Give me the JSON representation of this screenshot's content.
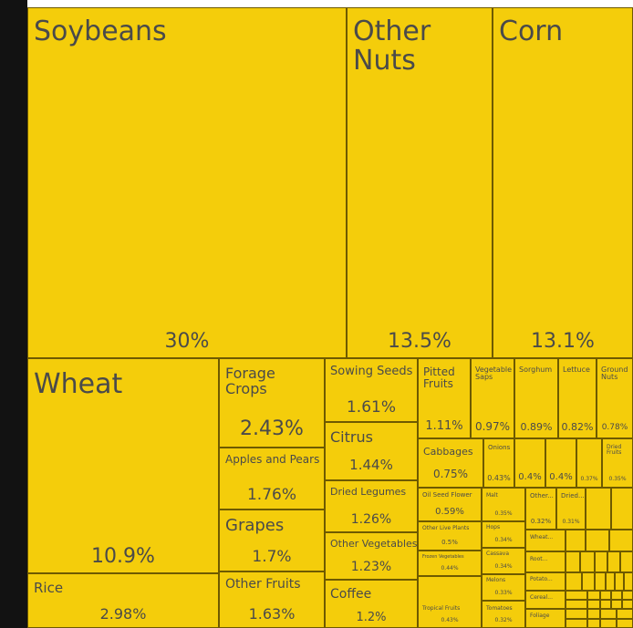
{
  "chart_data": {
    "type": "treemap",
    "colors": {
      "tile": "#f4cd0b",
      "border": "#6e5a00",
      "text": "#4a4a4a",
      "strip": "#121212",
      "background": "#ffffff"
    },
    "items": [
      {
        "name": "Soybeans",
        "display": "Soybeans",
        "value": 30,
        "label": "30%"
      },
      {
        "name": "Other Nuts",
        "display": "Other\nNuts",
        "value": 13.5,
        "label": "13.5%"
      },
      {
        "name": "Corn",
        "display": "Corn",
        "value": 13.1,
        "label": "13.1%"
      },
      {
        "name": "Wheat",
        "display": "Wheat",
        "value": 10.9,
        "label": "10.9%"
      },
      {
        "name": "Rice",
        "display": "Rice",
        "value": 2.98,
        "label": "2.98%"
      },
      {
        "name": "Forage Crops",
        "display": "Forage\nCrops",
        "value": 2.43,
        "label": "2.43%"
      },
      {
        "name": "Apples and Pears",
        "display": "Apples and Pears",
        "value": 1.76,
        "label": "1.76%"
      },
      {
        "name": "Grapes",
        "display": "Grapes",
        "value": 1.7,
        "label": "1.7%"
      },
      {
        "name": "Other Fruits",
        "display": "Other Fruits",
        "value": 1.63,
        "label": "1.63%"
      },
      {
        "name": "Sowing Seeds",
        "display": "Sowing Seeds",
        "value": 1.61,
        "label": "1.61%"
      },
      {
        "name": "Citrus",
        "display": "Citrus",
        "value": 1.44,
        "label": "1.44%"
      },
      {
        "name": "Dried Legumes",
        "display": "Dried Legumes",
        "value": 1.26,
        "label": "1.26%"
      },
      {
        "name": "Other Vegetables",
        "display": "Other Vegetables",
        "value": 1.23,
        "label": "1.23%"
      },
      {
        "name": "Coffee",
        "display": "Coffee",
        "value": 1.2,
        "label": "1.2%"
      },
      {
        "name": "Pitted Fruits",
        "display": "Pitted\nFruits",
        "value": 1.11,
        "label": "1.11%"
      },
      {
        "name": "Vegetable Saps",
        "display": "Vegetable\nSaps",
        "value": 0.97,
        "label": "0.97%"
      },
      {
        "name": "Sorghum",
        "display": "Sorghum",
        "value": 0.89,
        "label": "0.89%"
      },
      {
        "name": "Lettuce",
        "display": "Lettuce",
        "value": 0.82,
        "label": "0.82%"
      },
      {
        "name": "Ground Nuts",
        "display": "Ground\nNuts",
        "value": 0.78,
        "label": "0.78%"
      },
      {
        "name": "Cabbages",
        "display": "Cabbages",
        "value": 0.75,
        "label": "0.75%"
      },
      {
        "name": "Onions",
        "display": "Onions",
        "value": 0.43,
        "label": "0.43%"
      },
      {
        "name": "Unlabeled A",
        "display": "",
        "value": 0.4,
        "label": "0.4%"
      },
      {
        "name": "Unlabeled B",
        "display": "",
        "value": 0.4,
        "label": "0.4%"
      },
      {
        "name": "Unlabeled C",
        "display": "",
        "value": 0.37,
        "label": "0.37%"
      },
      {
        "name": "Dried Fruits",
        "display": "Dried\nFruits",
        "value": 0.35,
        "label": "0.35%"
      },
      {
        "name": "Oil Seed Flower",
        "display": "Oil Seed Flower",
        "value": 0.59,
        "label": "0.59%"
      },
      {
        "name": "Other Live Plants",
        "display": "Other Live Plants",
        "value": 0.5,
        "label": "0.5%"
      },
      {
        "name": "Frozen Vegetables",
        "display": "Frozen Vegetables",
        "value": 0.44,
        "label": "0.44%"
      },
      {
        "name": "Tropical Fruits",
        "display": "Tropical Fruits",
        "value": 0.43,
        "label": "0.43%"
      },
      {
        "name": "Malt",
        "display": "Malt",
        "value": 0.35,
        "label": "0.35%"
      },
      {
        "name": "Hops",
        "display": "Hops",
        "value": 0.34,
        "label": "0.34%"
      },
      {
        "name": "Cassava",
        "display": "Cassava",
        "value": 0.34,
        "label": "0.34%"
      },
      {
        "name": "Melons",
        "display": "Melons",
        "value": 0.33,
        "label": "0.33%"
      },
      {
        "name": "Tomatoes",
        "display": "Tomatoes",
        "value": 0.32,
        "label": "0.32%"
      },
      {
        "name": "Other...",
        "display": "Other...",
        "value": 0.32,
        "label": "0.32%"
      },
      {
        "name": "Dried...",
        "display": "Dried...",
        "value": 0.31,
        "label": "0.31%"
      },
      {
        "name": "Wheat...",
        "display": "Wheat...",
        "value": null,
        "label": ""
      },
      {
        "name": "Root...",
        "display": "Root...",
        "value": null,
        "label": ""
      },
      {
        "name": "Potato...",
        "display": "Potato...",
        "value": null,
        "label": ""
      },
      {
        "name": "Cereal...",
        "display": "Cereal...",
        "value": null,
        "label": ""
      },
      {
        "name": "Foliage",
        "display": "Foliage",
        "value": null,
        "label": ""
      }
    ]
  }
}
